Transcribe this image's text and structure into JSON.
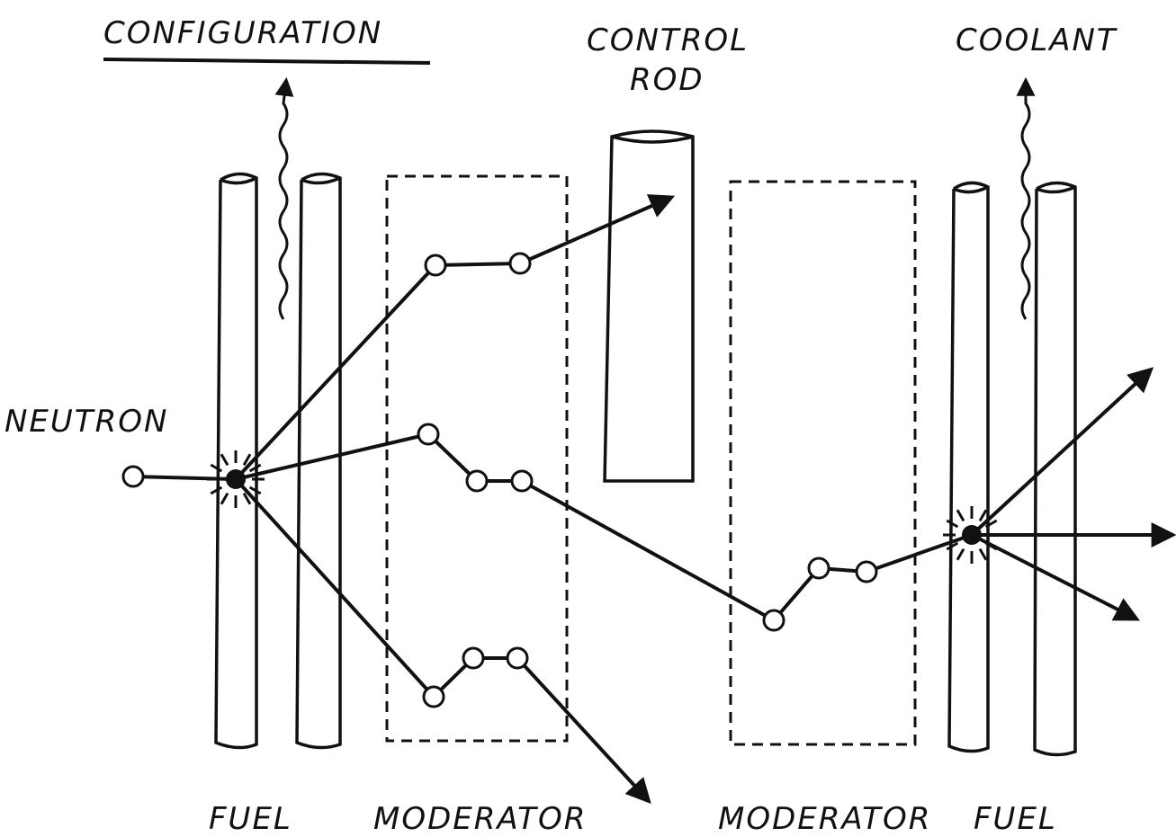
{
  "title": "CONFIGURATION",
  "labels": {
    "control_rod": [
      "CONTROL",
      "ROD"
    ],
    "coolant": "COOLANT",
    "neutron": "NEUTRON",
    "fuel_left": "FUEL",
    "moderator_left": "MODERATOR",
    "moderator_right": "MODERATOR",
    "fuel_right": "FUEL"
  }
}
